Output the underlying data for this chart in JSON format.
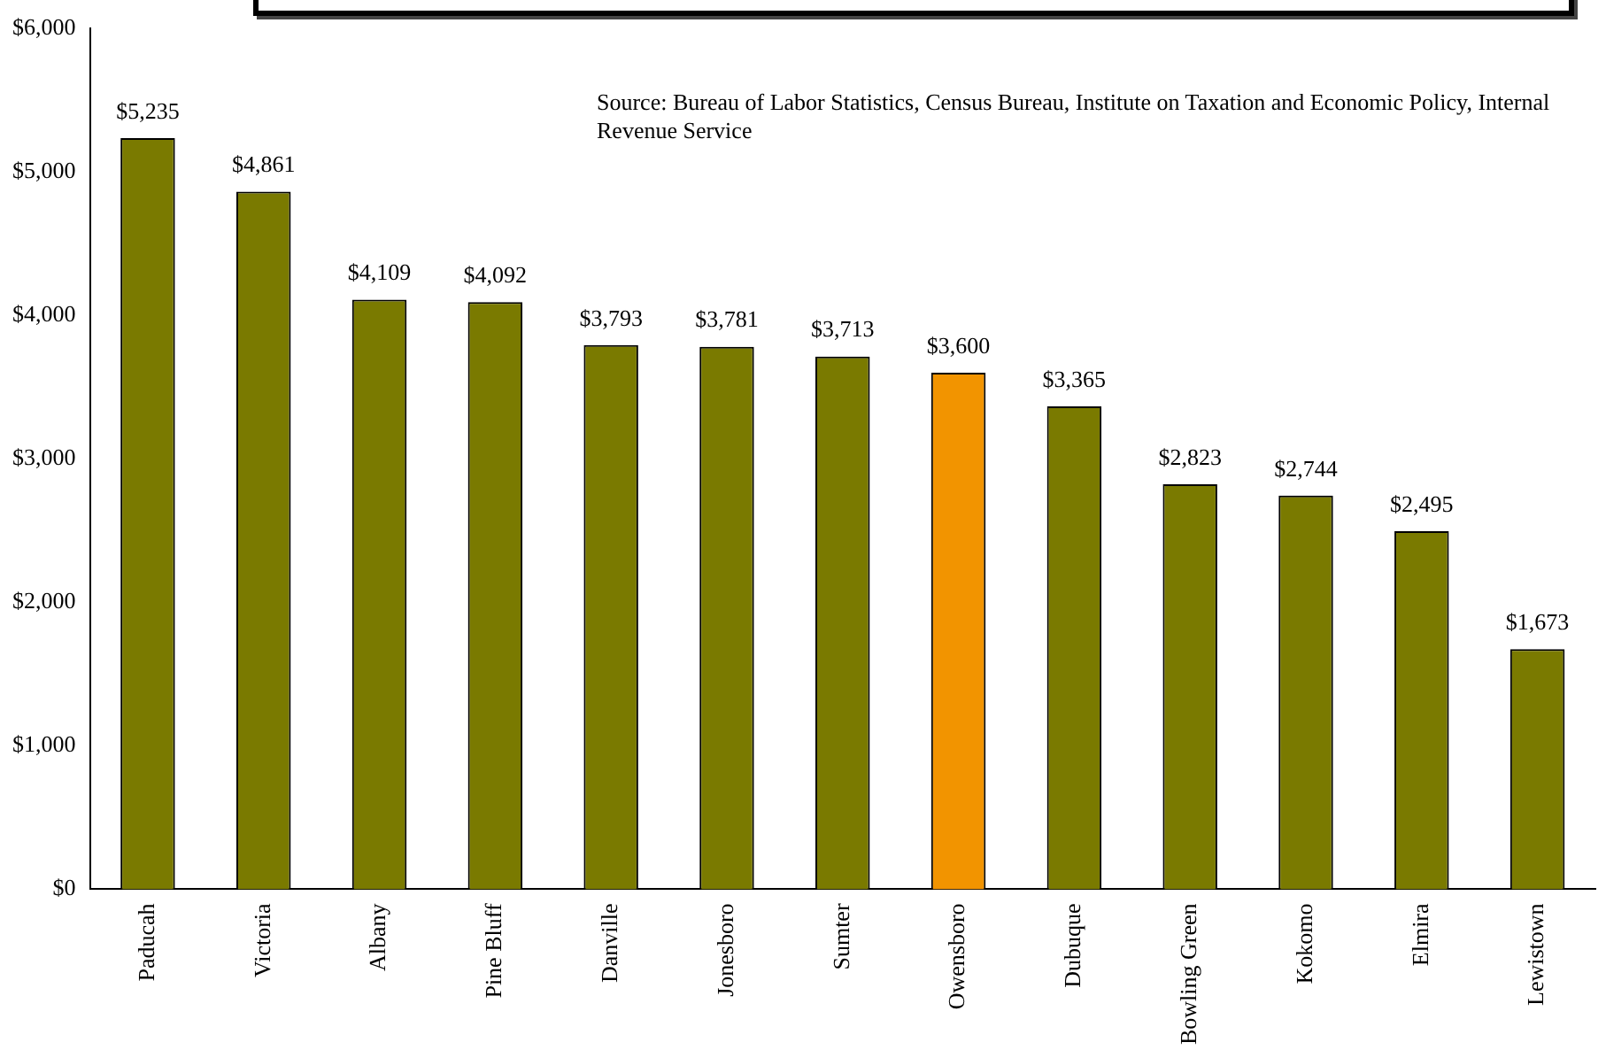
{
  "chart_data": {
    "type": "bar",
    "categories": [
      "Paducah",
      "Victoria",
      "Albany",
      "Pine Bluff",
      "Danville",
      "Jonesboro",
      "Sumter",
      "Owensboro",
      "Dubuque",
      "Bowling Green",
      "Kokomo",
      "Elmira",
      "Lewistown"
    ],
    "values": [
      5235,
      4861,
      4109,
      4092,
      3793,
      3781,
      3713,
      3600,
      3365,
      2823,
      2744,
      2495,
      1673
    ],
    "colors": [
      "#7a7a00",
      "#7a7a00",
      "#7a7a00",
      "#7a7a00",
      "#7a7a00",
      "#7a7a00",
      "#7a7a00",
      "#f29400",
      "#7a7a00",
      "#7a7a00",
      "#7a7a00",
      "#7a7a00",
      "#7a7a00"
    ],
    "value_labels": [
      "$5,235",
      "$4,861",
      "$4,109",
      "$4,092",
      "$3,793",
      "$3,781",
      "$3,713",
      "$3,600",
      "$3,365",
      "$2,823",
      "$2,744",
      "$2,495",
      "$1,673"
    ],
    "ylim": [
      0,
      6000
    ],
    "yticks": [
      {
        "value": 0,
        "label": "$0"
      },
      {
        "value": 1000,
        "label": "$1,000"
      },
      {
        "value": 2000,
        "label": "$2,000"
      },
      {
        "value": 3000,
        "label": "$3,000"
      },
      {
        "value": 4000,
        "label": "$4,000"
      },
      {
        "value": 5000,
        "label": "$5,000"
      },
      {
        "value": 6000,
        "label": "$6,000"
      }
    ],
    "grid": false,
    "legend": false,
    "annotations": [
      "Source: Bureau of Labor Statistics, Census Bureau, Institute on Taxation and Economic Policy, Internal Revenue Service"
    ]
  }
}
